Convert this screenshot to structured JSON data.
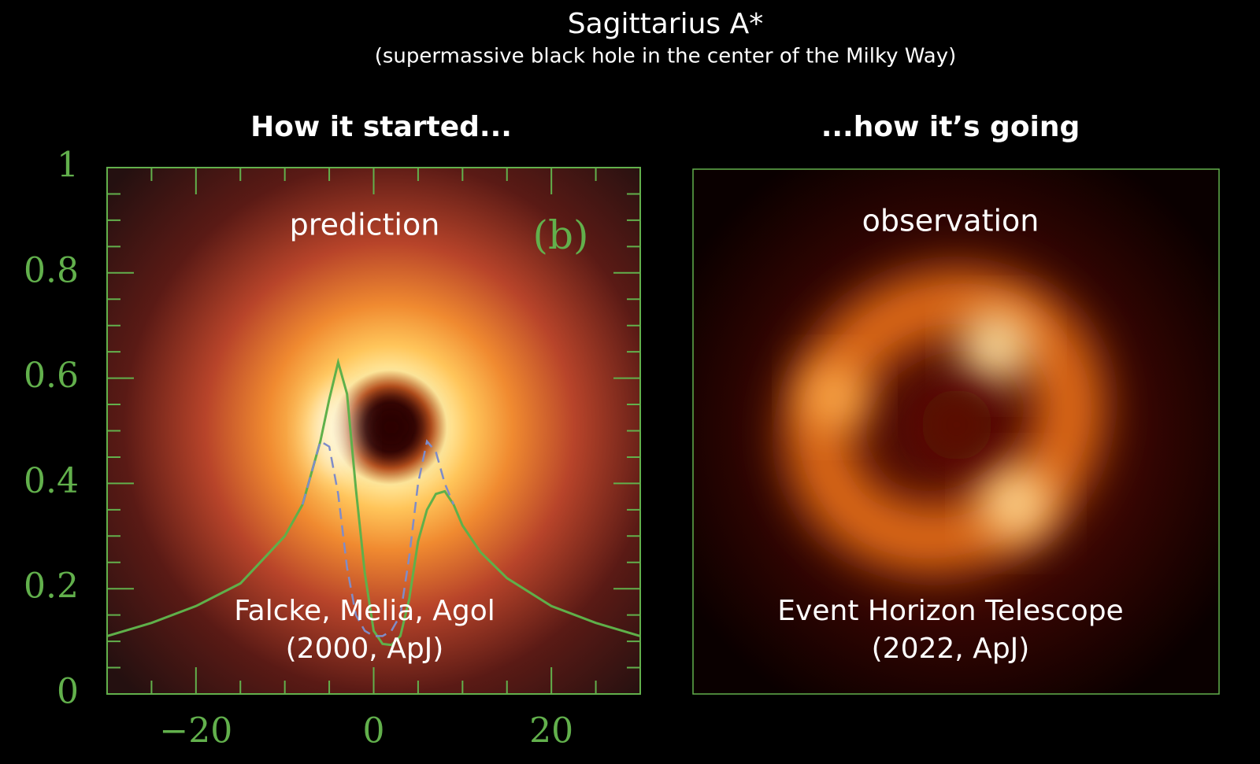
{
  "title": "Sagittarius A*",
  "subtitle": "(supermassive black hole in the center of the Milky Way)",
  "chart_data": {
    "type": "line",
    "heading": "How it started...",
    "annotations": [
      "prediction",
      "(b)",
      "Falcke, Melia, Agol",
      "(2000, ApJ)"
    ],
    "x": [
      -30,
      -25,
      -20,
      -15,
      -10,
      -8,
      -6,
      -5,
      -4,
      -3,
      -2,
      -1,
      0,
      1,
      2,
      3,
      4,
      5,
      6,
      7,
      8,
      9,
      10,
      12,
      15,
      20,
      25,
      30
    ],
    "series": [
      {
        "color": "#5fb04a",
        "style": "solid",
        "values": [
          0.11,
          0.135,
          0.167,
          0.21,
          0.3,
          0.36,
          0.48,
          0.56,
          0.63,
          0.57,
          0.39,
          0.23,
          0.12,
          0.095,
          0.093,
          0.11,
          0.18,
          0.29,
          0.35,
          0.38,
          0.385,
          0.36,
          0.32,
          0.27,
          0.22,
          0.167,
          0.135,
          0.11
        ]
      },
      {
        "color": "#7f8cc8",
        "style": "dashed",
        "values": [
          null,
          null,
          null,
          null,
          null,
          0.36,
          0.48,
          0.47,
          0.38,
          0.24,
          0.15,
          0.12,
          0.11,
          0.11,
          0.12,
          0.15,
          0.26,
          0.4,
          0.48,
          0.46,
          0.4,
          0.36,
          null,
          null,
          null,
          null,
          null,
          null
        ]
      }
    ],
    "xlim": [
      -30,
      30
    ],
    "ylim": [
      0,
      1
    ],
    "xticks": [
      {
        "value": -20,
        "label": "−20"
      },
      0,
      20
    ],
    "yticks": [
      0,
      0.2,
      0.4,
      0.6,
      0.8,
      1
    ],
    "x_minor_ticks": [
      -25,
      -15,
      -10,
      -5,
      5,
      10,
      15,
      25
    ],
    "y_minor_ticks": [
      0.05,
      0.1,
      0.15,
      0.25,
      0.3,
      0.35,
      0.45,
      0.5,
      0.55,
      0.65,
      0.7,
      0.75,
      0.85,
      0.9,
      0.95
    ],
    "axis_color": "#62b04c"
  },
  "observation": {
    "heading": "...how it’s going",
    "label": "observation",
    "credit": [
      "Event Horizon Telescope",
      "(2022, ApJ)"
    ]
  }
}
